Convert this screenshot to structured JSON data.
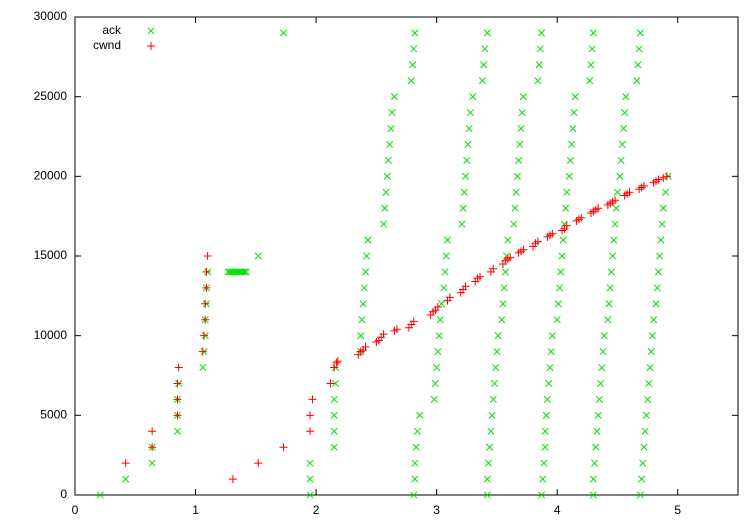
{
  "chart_data": {
    "type": "scatter",
    "xlim": [
      0,
      5.5
    ],
    "xticks": [
      0,
      1,
      2,
      3,
      4,
      5
    ],
    "ylim": [
      0,
      30000
    ],
    "yticks": [
      0,
      5000,
      10000,
      15000,
      20000,
      25000,
      30000
    ],
    "grid": false,
    "legend": "top-left",
    "series": [
      {
        "name": "ack",
        "color": "#00e000",
        "marker": "x",
        "x": [
          0.21,
          0.42,
          0.64,
          0.64,
          0.85,
          0.85,
          0.85,
          0.86,
          1.06,
          1.07,
          1.08,
          1.08,
          1.09,
          1.09,
          1.1,
          1.27,
          1.285,
          1.3,
          1.315,
          1.33,
          1.345,
          1.36,
          1.375,
          1.39,
          1.405,
          1.42,
          1.52,
          1.73,
          1.95,
          1.95,
          1.95,
          2.15,
          2.15,
          2.15,
          2.15,
          2.16,
          2.16,
          2.37,
          2.37,
          2.38,
          2.39,
          2.4,
          2.41,
          2.42,
          2.43,
          2.56,
          2.57,
          2.58,
          2.59,
          2.6,
          2.61,
          2.62,
          2.63,
          2.65,
          2.79,
          2.8,
          2.81,
          2.82,
          2.81,
          2.82,
          2.82,
          2.83,
          2.84,
          2.86,
          2.98,
          2.99,
          3.0,
          3.01,
          3.02,
          3.03,
          3.04,
          3.06,
          3.07,
          3.08,
          3.09,
          3.21,
          3.22,
          3.23,
          3.24,
          3.25,
          3.26,
          3.27,
          3.28,
          3.3,
          3.38,
          3.39,
          3.4,
          3.42,
          3.42,
          3.42,
          3.43,
          3.44,
          3.45,
          3.46,
          3.47,
          3.48,
          3.49,
          3.5,
          3.51,
          3.54,
          3.55,
          3.56,
          3.57,
          3.58,
          3.59,
          3.64,
          3.65,
          3.66,
          3.67,
          3.68,
          3.69,
          3.7,
          3.71,
          3.72,
          3.84,
          3.85,
          3.86,
          3.87,
          3.87,
          3.88,
          3.89,
          3.9,
          3.9,
          3.91,
          3.92,
          3.93,
          3.94,
          3.95,
          3.96,
          4.0,
          4.01,
          4.02,
          4.03,
          4.04,
          4.05,
          4.06,
          4.07,
          4.08,
          4.1,
          4.11,
          4.12,
          4.13,
          4.14,
          4.15,
          4.27,
          4.28,
          4.29,
          4.3,
          4.3,
          4.3,
          4.31,
          4.32,
          4.33,
          4.34,
          4.35,
          4.36,
          4.37,
          4.38,
          4.39,
          4.42,
          4.43,
          4.44,
          4.45,
          4.46,
          4.47,
          4.48,
          4.49,
          4.5,
          4.52,
          4.53,
          4.54,
          4.55,
          4.56,
          4.57,
          4.66,
          4.67,
          4.68,
          4.69,
          4.69,
          4.7,
          4.71,
          4.72,
          4.73,
          4.74,
          4.75,
          4.76,
          4.77,
          4.78,
          4.79,
          4.8,
          4.82,
          4.83,
          4.84,
          4.85,
          4.86,
          4.87,
          4.88,
          4.9,
          4.92
        ],
        "values": [
          0,
          1000,
          2000,
          3000,
          4000,
          5000,
          6000,
          7000,
          8000,
          9000,
          10000,
          11000,
          12000,
          13000,
          14000,
          14000,
          14000,
          14000,
          14000,
          14000,
          14000,
          14000,
          14000,
          14000,
          14000,
          14000,
          15000,
          29000,
          0,
          1000,
          2000,
          3000,
          4000,
          5000,
          6000,
          7000,
          8000,
          9000,
          10000,
          11000,
          12000,
          13000,
          14000,
          15000,
          16000,
          17000,
          18000,
          19000,
          20000,
          21000,
          22000,
          23000,
          24000,
          25000,
          26000,
          27000,
          28000,
          29000,
          0,
          1000,
          2000,
          3000,
          4000,
          5000,
          6000,
          7000,
          8000,
          9000,
          10000,
          11000,
          12000,
          13000,
          14000,
          15000,
          16000,
          17000,
          18000,
          19000,
          20000,
          21000,
          22000,
          23000,
          24000,
          25000,
          26000,
          27000,
          28000,
          29000,
          0,
          1000,
          2000,
          3000,
          4000,
          5000,
          6000,
          7000,
          8000,
          9000,
          10000,
          11000,
          12000,
          13000,
          14000,
          15000,
          16000,
          17000,
          18000,
          19000,
          20000,
          21000,
          22000,
          23000,
          24000,
          25000,
          26000,
          27000,
          28000,
          29000,
          0,
          1000,
          2000,
          3000,
          4000,
          5000,
          6000,
          7000,
          8000,
          9000,
          10000,
          11000,
          12000,
          13000,
          14000,
          15000,
          16000,
          17000,
          18000,
          19000,
          20000,
          21000,
          22000,
          23000,
          24000,
          25000,
          26000,
          27000,
          28000,
          29000,
          0,
          1000,
          2000,
          3000,
          4000,
          5000,
          6000,
          7000,
          8000,
          9000,
          10000,
          11000,
          12000,
          13000,
          14000,
          15000,
          16000,
          17000,
          18000,
          19000,
          20000,
          21000,
          22000,
          23000,
          24000,
          25000,
          26000,
          27000,
          28000,
          29000,
          0,
          1000,
          2000,
          3000,
          4000,
          5000,
          6000,
          7000,
          8000,
          9000,
          10000,
          11000,
          12000,
          13000,
          14000,
          15000,
          16000,
          17000,
          18000,
          19000,
          20000
        ]
      },
      {
        "name": "cwnd",
        "color": "#ff0000",
        "marker": "+",
        "x": [
          0.42,
          0.64,
          0.64,
          0.85,
          0.85,
          0.85,
          0.86,
          1.06,
          1.07,
          1.08,
          1.08,
          1.09,
          1.09,
          1.1,
          1.31,
          1.52,
          1.73,
          1.95,
          1.95,
          1.97,
          2.12,
          2.15,
          2.17,
          2.18,
          2.35,
          2.37,
          2.39,
          2.41,
          2.5,
          2.52,
          2.54,
          2.56,
          2.65,
          2.67,
          2.77,
          2.79,
          2.81,
          2.95,
          2.97,
          2.99,
          3.01,
          3.09,
          3.11,
          3.2,
          3.22,
          3.24,
          3.32,
          3.34,
          3.36,
          3.45,
          3.47,
          3.55,
          3.57,
          3.59,
          3.61,
          3.68,
          3.7,
          3.72,
          3.8,
          3.82,
          3.84,
          3.92,
          3.94,
          3.96,
          4.04,
          4.06,
          4.08,
          4.16,
          4.18,
          4.2,
          4.28,
          4.3,
          4.32,
          4.34,
          4.42,
          4.44,
          4.46,
          4.48,
          4.56,
          4.58,
          4.6,
          4.68,
          4.7,
          4.72,
          4.8,
          4.82,
          4.84,
          4.88,
          4.91
        ],
        "values": [
          2000,
          3000,
          4000,
          5000,
          6000,
          7000,
          8000,
          9000,
          10000,
          11000,
          12000,
          13000,
          14000,
          15000,
          1000,
          2000,
          3000,
          4000,
          5000,
          6000,
          7000,
          8000,
          8300,
          8400,
          8800,
          9000,
          9100,
          9300,
          9600,
          9700,
          9900,
          10100,
          10300,
          10400,
          10500,
          10700,
          10900,
          11300,
          11500,
          11600,
          11800,
          12200,
          12400,
          12700,
          12900,
          13100,
          13400,
          13600,
          13700,
          14000,
          14200,
          14500,
          14700,
          14800,
          14900,
          15200,
          15300,
          15400,
          15600,
          15800,
          15900,
          16200,
          16300,
          16400,
          16600,
          16700,
          16900,
          17200,
          17300,
          17400,
          17700,
          17800,
          17900,
          18000,
          18200,
          18300,
          18400,
          18500,
          18800,
          18900,
          19000,
          19200,
          19300,
          19400,
          19600,
          19700,
          19800,
          19900,
          20000
        ]
      }
    ]
  }
}
